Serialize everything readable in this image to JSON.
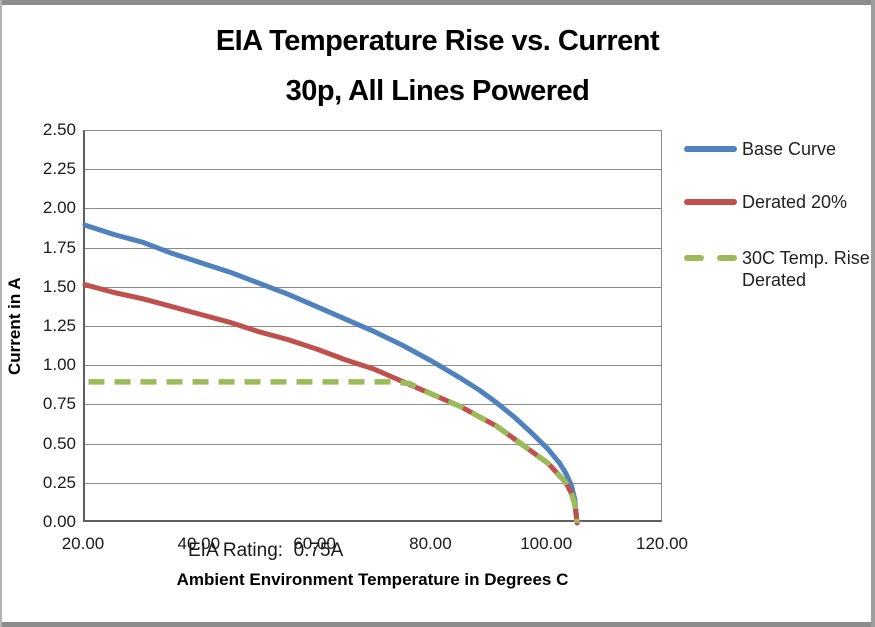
{
  "frame": {
    "border_color": "#8c8c8c",
    "background": "#ffffff"
  },
  "chart_data": {
    "type": "line",
    "title_line1": "EIA Temperature Rise vs. Current",
    "title_line2": "30p, All Lines Powered",
    "xlabel": "Ambient Environment Temperature in Degrees C",
    "ylabel": "Current in A",
    "xlim": [
      20,
      120
    ],
    "ylim": [
      0,
      2.5
    ],
    "x_ticks": [
      "20.00",
      "40.00",
      "60.00",
      "80.00",
      "100.00",
      "120.00"
    ],
    "y_ticks": [
      "2.50",
      "2.25",
      "2.00",
      "1.75",
      "1.50",
      "1.25",
      "1.00",
      "0.75",
      "0.50",
      "0.25",
      "0.00"
    ],
    "grid": "horizontal-only",
    "gridline_color": "#8a8a8a",
    "legend_position": "right",
    "annotation": "EIA Rating:  0.75A",
    "series": [
      {
        "name": "Base Curve",
        "color": "#4F81BD",
        "style": "solid",
        "points": [
          [
            20,
            1.9
          ],
          [
            25,
            1.84
          ],
          [
            30,
            1.79
          ],
          [
            35,
            1.72
          ],
          [
            40,
            1.66
          ],
          [
            45,
            1.6
          ],
          [
            50,
            1.53
          ],
          [
            55,
            1.46
          ],
          [
            60,
            1.38
          ],
          [
            65,
            1.3
          ],
          [
            70,
            1.22
          ],
          [
            75,
            1.13
          ],
          [
            80,
            1.03
          ],
          [
            85,
            0.92
          ],
          [
            88,
            0.85
          ],
          [
            91,
            0.77
          ],
          [
            94,
            0.68
          ],
          [
            97,
            0.58
          ],
          [
            100,
            0.47
          ],
          [
            102,
            0.38
          ],
          [
            103,
            0.32
          ],
          [
            104,
            0.24
          ],
          [
            104.6,
            0.15
          ],
          [
            105,
            0.0
          ]
        ]
      },
      {
        "name": "Derated 20%",
        "color": "#C0504D",
        "style": "solid",
        "points": [
          [
            20,
            1.52
          ],
          [
            25,
            1.47
          ],
          [
            30,
            1.43
          ],
          [
            35,
            1.38
          ],
          [
            40,
            1.33
          ],
          [
            45,
            1.28
          ],
          [
            50,
            1.22
          ],
          [
            55,
            1.17
          ],
          [
            60,
            1.11
          ],
          [
            65,
            1.04
          ],
          [
            70,
            0.98
          ],
          [
            75,
            0.9
          ],
          [
            80,
            0.82
          ],
          [
            85,
            0.74
          ],
          [
            88,
            0.68
          ],
          [
            91,
            0.62
          ],
          [
            94,
            0.54
          ],
          [
            97,
            0.46
          ],
          [
            100,
            0.38
          ],
          [
            102,
            0.3
          ],
          [
            103,
            0.26
          ],
          [
            104,
            0.19
          ],
          [
            104.6,
            0.12
          ],
          [
            105,
            0.0
          ]
        ]
      },
      {
        "name": "30C Temp. Rise Derated",
        "color": "#9BBB59",
        "style": "dashed",
        "points": [
          [
            20.6,
            0.9
          ],
          [
            30,
            0.9
          ],
          [
            40,
            0.9
          ],
          [
            50,
            0.9
          ],
          [
            60,
            0.9
          ],
          [
            68,
            0.9
          ],
          [
            73,
            0.9
          ],
          [
            76,
            0.89
          ],
          [
            80,
            0.82
          ],
          [
            85,
            0.74
          ],
          [
            88,
            0.68
          ],
          [
            91,
            0.62
          ],
          [
            94,
            0.54
          ],
          [
            97,
            0.46
          ],
          [
            100,
            0.38
          ],
          [
            102,
            0.3
          ],
          [
            103,
            0.26
          ],
          [
            104,
            0.19
          ],
          [
            104.6,
            0.12
          ],
          [
            105,
            0.0
          ]
        ]
      }
    ]
  }
}
